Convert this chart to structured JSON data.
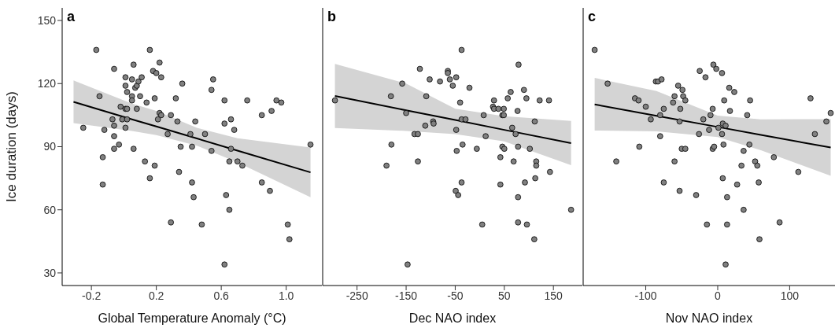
{
  "chart_data": [
    {
      "type": "scatter",
      "title": "a",
      "xlabel": "Global Temperature Anomaly (°C)",
      "ylabel": "Ice duration (days)",
      "xlim": [
        -0.38,
        1.22
      ],
      "xticks": [
        -0.2,
        0.2,
        0.6,
        {
          "value": 1,
          "label": "1.0"
        }
      ],
      "ylim": [
        24,
        156
      ],
      "yticks": [
        30,
        60,
        90,
        120,
        150
      ],
      "marker": "circle",
      "line_style": "solid",
      "series": [
        {
          "color": "#808080",
          "x": [
            -0.25,
            -0.17,
            -0.15,
            -0.12,
            -0.13,
            -0.13,
            -0.06,
            -0.07,
            -0.06,
            -0.06,
            -0.06,
            -0.03,
            -0.02,
            -0.01,
            0.01,
            0.01,
            0.02,
            0.01,
            0.02,
            0.02,
            0.01,
            0.05,
            0.06,
            0.05,
            0.05,
            0.07,
            0.08,
            0.09,
            0.11,
            0.1,
            0.08,
            0.06,
            0.14,
            0.13,
            0.16,
            0.16,
            0.18,
            0.2,
            0.22,
            0.23,
            0.19,
            0.22,
            0.23,
            0.21,
            0.19,
            0.27,
            0.29,
            0.29,
            0.32,
            0.33,
            0.36,
            0.35,
            0.34,
            0.41,
            0.42,
            0.42,
            0.43,
            0.44,
            0.48,
            0.5,
            0.55,
            0.54,
            0.54,
            0.62,
            0.62,
            0.63,
            0.62,
            0.66,
            0.68,
            0.66,
            0.65,
            0.65,
            0.7,
            0.73,
            0.76,
            0.85,
            0.85,
            0.91,
            0.9,
            0.94,
            0.97,
            1.01,
            1.02,
            1.15
          ],
          "values": [
            99,
            136,
            114,
            98,
            85,
            72,
            127,
            103,
            100,
            95,
            89,
            91,
            109,
            103,
            123,
            119,
            116,
            108,
            108,
            103,
            99,
            122,
            129,
            114,
            112,
            118,
            119,
            121,
            123,
            114,
            108,
            89,
            111,
            83,
            136,
            75,
            126,
            125,
            130,
            123,
            113,
            106,
            105,
            103,
            81,
            96,
            105,
            54,
            113,
            102,
            120,
            90,
            78,
            96,
            90,
            73,
            66,
            102,
            53,
            96,
            122,
            117,
            88,
            112,
            101,
            67,
            34,
            103,
            98,
            89,
            83,
            60,
            83,
            81,
            112,
            105,
            73,
            107,
            69,
            112,
            111,
            53,
            46,
            91
          ]
        },
        {
          "type": "line",
          "marker": "none",
          "color": "#000000",
          "x": [
            -0.31,
            0.05,
            0.2,
            0.45,
            0.7,
            1.15
          ],
          "values": [
            111.3,
            103,
            99.6,
            93.9,
            88.1,
            77.8
          ],
          "lower": [
            101.2,
            97.5,
            95.5,
            90.5,
            82.5,
            66
          ],
          "upper": [
            121.5,
            110.5,
            107,
            99,
            94,
            89.6
          ]
        }
      ]
    },
    {
      "type": "scatter",
      "title": "b",
      "xlabel": "Dec NAO index",
      "xlim": [
        -320,
        209
      ],
      "xticks": [
        -250,
        -150,
        -50,
        50,
        150
      ],
      "ylim": [
        24,
        156
      ],
      "yticks": [
        30,
        60,
        90,
        120,
        150
      ],
      "tick_labels": "x",
      "marker": "circle",
      "line_style": "solid",
      "series": [
        {
          "color": "#808080",
          "x": [
            -295,
            -190,
            -181,
            -180,
            -158,
            -150,
            -147,
            -133,
            -126,
            -126,
            -122,
            -111,
            -109,
            -102,
            -95,
            -94,
            -81,
            -65,
            -65,
            -61,
            -55,
            -48,
            -48,
            -47,
            -49,
            -44,
            -40,
            -37,
            -37,
            -29,
            -35,
            -37,
            -21,
            -6,
            5,
            8,
            12,
            29,
            27,
            29,
            38,
            49,
            46,
            49,
            46,
            50,
            42,
            42,
            57,
            63,
            66,
            73,
            69,
            77,
            78,
            79,
            78,
            78,
            90,
            95,
            92,
            96,
            102,
            112,
            115,
            115,
            113,
            111,
            122,
            141,
            143,
            186
          ],
          "values": [
            112,
            81,
            114,
            91,
            120,
            106,
            34,
            96,
            96,
            83,
            127,
            100,
            114,
            122,
            102,
            101,
            121,
            126,
            125,
            122,
            119,
            123,
            98,
            88,
            69,
            67,
            111,
            136,
            103,
            103,
            91,
            73,
            118,
            89,
            53,
            105,
            95,
            112,
            109,
            108,
            108,
            108,
            105,
            105,
            90,
            89,
            85,
            72,
            113,
            116,
            99,
            96,
            83,
            107,
            90,
            129,
            66,
            54,
            117,
            113,
            73,
            53,
            89,
            102,
            83,
            81,
            75,
            46,
            112,
            112,
            78,
            60
          ]
        },
        {
          "type": "line",
          "marker": "none",
          "color": "#000000",
          "x": [
            -295,
            -150,
            -50,
            50,
            186
          ],
          "values": [
            114.1,
            107.3,
            102.7,
            98,
            91.7
          ],
          "lower": [
            98.9,
            97.5,
            96,
            92.5,
            81.2
          ],
          "upper": [
            129.4,
            120,
            108,
            104.5,
            102.2
          ]
        }
      ]
    },
    {
      "type": "scatter",
      "title": "c",
      "xlabel": "Nov NAO index",
      "xlim": [
        -187,
        163
      ],
      "xticks": [
        -100,
        0,
        100
      ],
      "ylim": [
        24,
        156
      ],
      "yticks": [
        30,
        60,
        90,
        120,
        150
      ],
      "tick_labels": "x",
      "marker": "circle",
      "line_style": "solid",
      "series": [
        {
          "color": "#808080",
          "x": [
            -171,
            -153,
            -141,
            -115,
            -110,
            -109,
            -100,
            -93,
            -86,
            -83,
            -78,
            -80,
            -80,
            -75,
            -75,
            -62,
            -60,
            -60,
            -55,
            -52,
            -53,
            -49,
            -48,
            -45,
            -50,
            -45,
            -53,
            -30,
            -26,
            -25,
            -20,
            -17,
            -15,
            -12,
            -10,
            -7,
            -7,
            -5,
            -6,
            -2,
            1,
            6,
            7,
            9,
            11,
            6,
            8,
            7,
            11,
            13,
            13,
            16,
            17,
            23,
            27,
            33,
            36,
            36,
            41,
            44,
            45,
            52,
            55,
            57,
            58,
            78,
            86,
            112,
            129,
            135,
            151,
            157
          ],
          "values": [
            136,
            120,
            83,
            113,
            112,
            90,
            109,
            103,
            121,
            121,
            122,
            105,
            95,
            108,
            73,
            111,
            114,
            83,
            119,
            108,
            102,
            117,
            114,
            112,
            89,
            89,
            69,
            67,
            96,
            126,
            103,
            123,
            53,
            98,
            105,
            108,
            89,
            90,
            129,
            127,
            99,
            125,
            101,
            112,
            100,
            96,
            91,
            75,
            34,
            53,
            66,
            118,
            107,
            116,
            72,
            81,
            88,
            60,
            105,
            91,
            112,
            83,
            81,
            73,
            46,
            85,
            54,
            78,
            113,
            96,
            102,
            106
          ]
        },
        {
          "type": "line",
          "marker": "none",
          "color": "#000000",
          "x": [
            -171,
            -85,
            0,
            60,
            157
          ],
          "values": [
            110.1,
            104.7,
            99.4,
            95.6,
            89.6
          ],
          "lower": [
            97.7,
            97.3,
            94.6,
            88.3,
            76.2
          ],
          "upper": [
            122.7,
            116.5,
            104.8,
            103,
            103.1
          ]
        }
      ]
    }
  ]
}
